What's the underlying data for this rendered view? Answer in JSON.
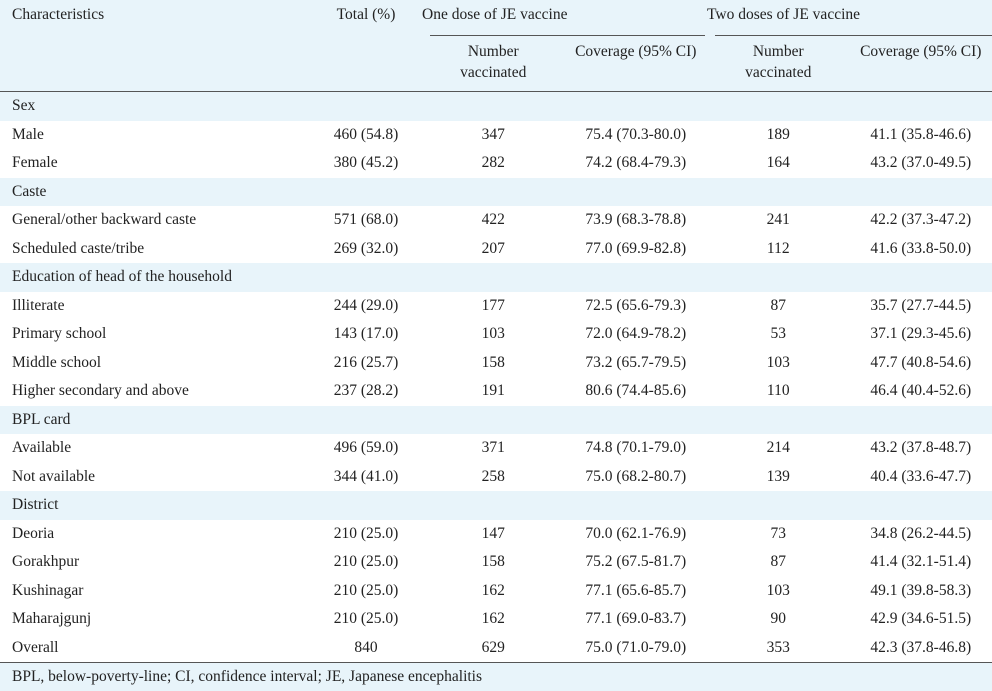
{
  "header": {
    "characteristics": "Characteristics",
    "total": "Total (%)",
    "one_dose": "One dose of JE vaccine",
    "two_doses": "Two doses of JE vaccine",
    "number_vaccinated": "Number vaccinated",
    "coverage": "Coverage (95% CI)"
  },
  "rows": [
    {
      "type": "group",
      "label": "Sex"
    },
    {
      "type": "data",
      "label": "Male",
      "total": "460 (54.8)",
      "n1": "347",
      "cov1": "75.4 (70.3-80.0)",
      "n2": "189",
      "cov2": "41.1 (35.8-46.6)"
    },
    {
      "type": "data",
      "label": "Female",
      "total": "380 (45.2)",
      "n1": "282",
      "cov1": "74.2 (68.4-79.3)",
      "n2": "164",
      "cov2": "43.2 (37.0-49.5)"
    },
    {
      "type": "group",
      "label": "Caste"
    },
    {
      "type": "data",
      "label": "General/other backward caste",
      "total": "571 (68.0)",
      "n1": "422",
      "cov1": "73.9 (68.3-78.8)",
      "n2": "241",
      "cov2": "42.2 (37.3-47.2)"
    },
    {
      "type": "data",
      "label": "Scheduled caste/tribe",
      "total": "269 (32.0)",
      "n1": "207",
      "cov1": "77.0 (69.9-82.8)",
      "n2": "112",
      "cov2": "41.6 (33.8-50.0)"
    },
    {
      "type": "group",
      "label": "Education of head of the household"
    },
    {
      "type": "data",
      "label": "Illiterate",
      "total": "244 (29.0)",
      "n1": "177",
      "cov1": "72.5 (65.6-79.3)",
      "n2": "87",
      "cov2": "35.7 (27.7-44.5)"
    },
    {
      "type": "data",
      "label": "Primary school",
      "total": "143 (17.0)",
      "n1": "103",
      "cov1": "72.0 (64.9-78.2)",
      "n2": "53",
      "cov2": "37.1 (29.3-45.6)"
    },
    {
      "type": "data",
      "label": "Middle school",
      "total": "216 (25.7)",
      "n1": "158",
      "cov1": "73.2 (65.7-79.5)",
      "n2": "103",
      "cov2": "47.7 (40.8-54.6)"
    },
    {
      "type": "data",
      "label": "Higher secondary and above",
      "total": "237 (28.2)",
      "n1": "191",
      "cov1": "80.6 (74.4-85.6)",
      "n2": "110",
      "cov2": "46.4 (40.4-52.6)"
    },
    {
      "type": "group",
      "label": "BPL card"
    },
    {
      "type": "data",
      "label": "Available",
      "total": "496 (59.0)",
      "n1": "371",
      "cov1": "74.8 (70.1-79.0)",
      "n2": "214",
      "cov2": "43.2 (37.8-48.7)"
    },
    {
      "type": "data",
      "label": "Not available",
      "total": "344 (41.0)",
      "n1": "258",
      "cov1": "75.0 (68.2-80.7)",
      "n2": "139",
      "cov2": "40.4 (33.6-47.7)"
    },
    {
      "type": "group",
      "label": "District"
    },
    {
      "type": "data",
      "label": "Deoria",
      "total": "210 (25.0)",
      "n1": "147",
      "cov1": "70.0 (62.1-76.9)",
      "n2": "73",
      "cov2": "34.8 (26.2-44.5)"
    },
    {
      "type": "data",
      "label": "Gorakhpur",
      "total": "210 (25.0)",
      "n1": "158",
      "cov1": "75.2 (67.5-81.7)",
      "n2": "87",
      "cov2": "41.4 (32.1-51.4)"
    },
    {
      "type": "data",
      "label": "Kushinagar",
      "total": "210 (25.0)",
      "n1": "162",
      "cov1": "77.1 (65.6-85.7)",
      "n2": "103",
      "cov2": "49.1 (39.8-58.3)"
    },
    {
      "type": "data",
      "label": "Maharajgunj",
      "total": "210 (25.0)",
      "n1": "162",
      "cov1": "77.1 (69.0-83.7)",
      "n2": "90",
      "cov2": "42.9 (34.6-51.5)"
    },
    {
      "type": "data",
      "label": "Overall",
      "total": "840",
      "n1": "629",
      "cov1": "75.0 (71.0-79.0)",
      "n2": "353",
      "cov2": "42.3 (37.8-46.8)"
    }
  ],
  "footnote": "BPL, below-poverty-line; CI, confidence interval; JE, Japanese encephalitis",
  "colors": {
    "row_shade": "#e8f4fa",
    "rule": "#555555",
    "text": "#222222"
  }
}
